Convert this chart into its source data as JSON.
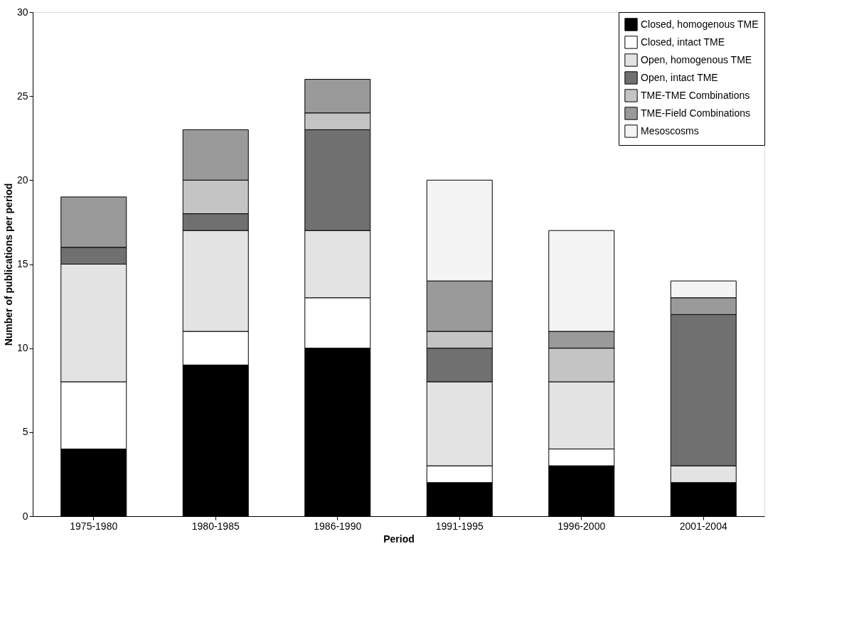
{
  "chart_data": {
    "type": "bar",
    "stacked": true,
    "xlabel": "Period",
    "ylabel": "Number of publications per period",
    "categories": [
      "1975-1980",
      "1980-1985",
      "1986-1990",
      "1991-1995",
      "1996-2000",
      "2001-2004"
    ],
    "series": [
      {
        "name": "Closed, homogenous TME",
        "color": "#000000",
        "values": [
          4,
          9,
          10,
          2,
          3,
          2
        ]
      },
      {
        "name": "Closed, intact TME",
        "color": "#ffffff",
        "values": [
          4,
          2,
          3,
          1,
          1,
          0
        ]
      },
      {
        "name": "Open, homogenous TME",
        "color": "#e3e3e3",
        "values": [
          7,
          6,
          4,
          5,
          4,
          1
        ]
      },
      {
        "name": "Open, intact TME",
        "color": "#707070",
        "values": [
          1,
          1,
          6,
          2,
          0,
          9
        ]
      },
      {
        "name": "TME-TME Combinations",
        "color": "#c4c4c4",
        "values": [
          0,
          2,
          1,
          1,
          2,
          0
        ]
      },
      {
        "name": "TME-Field Combinations",
        "color": "#9a9a9a",
        "values": [
          3,
          3,
          2,
          3,
          1,
          1
        ]
      },
      {
        "name": "Mesoscosms",
        "color": "#f4f4f4",
        "values": [
          0,
          0,
          0,
          6,
          6,
          1
        ]
      }
    ],
    "ylim": [
      0,
      30
    ],
    "yticks": [
      0,
      5,
      10,
      15,
      20,
      25,
      30
    ],
    "grid": false,
    "legend": "top right"
  }
}
